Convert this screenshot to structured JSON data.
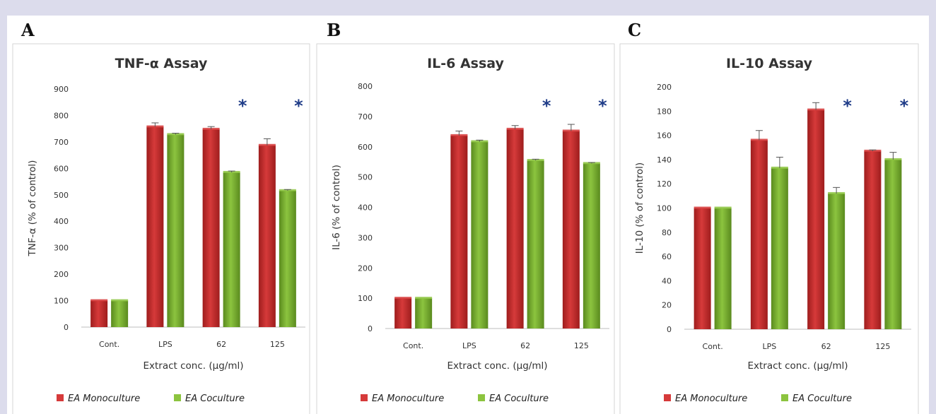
{
  "figure": {
    "colors": {
      "monoculture": "#d63a3a",
      "coculture": "#8cc43f",
      "monoculture_dark": "#9e1d1d",
      "coculture_dark": "#5a8a1e",
      "star": "#1f3c88",
      "background": "#dcdcec"
    }
  },
  "chart_data": [
    {
      "panel": "A",
      "type": "bar",
      "title": "TNF-α Assay",
      "xlabel": "Extract conc. (µg/ml)",
      "ylabel": "TNF-α (% of control)",
      "ylim": [
        0,
        900
      ],
      "yticks": [
        0,
        100,
        200,
        300,
        400,
        500,
        600,
        700,
        800,
        900
      ],
      "categories": [
        "Cont.",
        "LPS",
        "62",
        "125"
      ],
      "series": [
        {
          "name": "EA Monoculture",
          "values": [
            100,
            757,
            748,
            687
          ],
          "errors": [
            0,
            15,
            10,
            25
          ]
        },
        {
          "name": "EA Coculture",
          "values": [
            100,
            728,
            585,
            516
          ],
          "errors": [
            0,
            5,
            5,
            4
          ]
        }
      ],
      "significance": [
        "",
        "",
        "*",
        "*"
      ],
      "grid": false,
      "legend": "bottom"
    },
    {
      "panel": "B",
      "type": "bar",
      "title": "IL-6 Assay",
      "xlabel": "Extract conc. (µg/ml)",
      "ylabel": "IL-6 (% of control)",
      "ylim": [
        0,
        800
      ],
      "yticks": [
        0,
        100,
        200,
        300,
        400,
        500,
        600,
        700,
        800
      ],
      "categories": [
        "Cont.",
        "LPS",
        "62",
        "125"
      ],
      "series": [
        {
          "name": "EA Monoculture",
          "values": [
            100,
            637,
            658,
            652
          ],
          "errors": [
            0,
            15,
            12,
            22
          ]
        },
        {
          "name": "EA Coculture",
          "values": [
            100,
            617,
            555,
            545
          ],
          "errors": [
            0,
            5,
            4,
            3
          ]
        }
      ],
      "significance": [
        "",
        "",
        "*",
        "*"
      ],
      "grid": false,
      "legend": "bottom"
    },
    {
      "panel": "C",
      "type": "bar",
      "title": "IL-10 Assay",
      "xlabel": "Extract conc. (µg/ml)",
      "ylabel": "IL-10 (% of control)",
      "ylim": [
        0,
        200
      ],
      "yticks": [
        0,
        20,
        40,
        60,
        80,
        100,
        120,
        140,
        160,
        180,
        200
      ],
      "categories": [
        "Cont.",
        "LPS",
        "62",
        "125"
      ],
      "series": [
        {
          "name": "EA Monoculture",
          "values": [
            100,
            156,
            181,
            147
          ],
          "errors": [
            0,
            8,
            6,
            1
          ]
        },
        {
          "name": "EA Coculture",
          "values": [
            100,
            133,
            112,
            140
          ],
          "errors": [
            0,
            9,
            5,
            6
          ]
        }
      ],
      "significance": [
        "",
        "",
        "*",
        "*"
      ],
      "grid": false,
      "legend": "bottom"
    }
  ]
}
